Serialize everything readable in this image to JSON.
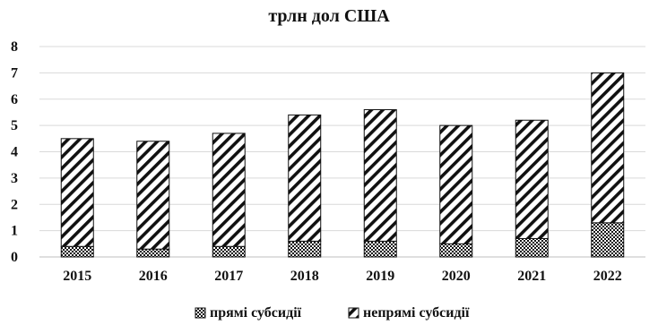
{
  "chart_data": {
    "type": "bar",
    "stacked": true,
    "title": "трлн дол США",
    "xlabel": "",
    "ylabel": "",
    "categories": [
      "2015",
      "2016",
      "2017",
      "2018",
      "2019",
      "2020",
      "2021",
      "2022"
    ],
    "series": [
      {
        "name": "прямі субсидії",
        "values": [
          0.4,
          0.3,
          0.4,
          0.6,
          0.6,
          0.5,
          0.7,
          1.3
        ],
        "pattern": "dots"
      },
      {
        "name": "непрямі субсидії",
        "values": [
          4.1,
          4.1,
          4.3,
          4.8,
          5.0,
          4.5,
          4.5,
          5.7
        ],
        "pattern": "diagonal-hatch"
      }
    ],
    "ylim": [
      0,
      8
    ],
    "yticks": [
      "0",
      "1",
      "2",
      "3",
      "4",
      "5",
      "6",
      "7",
      "8"
    ],
    "grid": true,
    "legend": "bottom",
    "colors": {
      "ink": "#111111",
      "grid": "#d9d9d9",
      "background": "#ffffff"
    }
  }
}
